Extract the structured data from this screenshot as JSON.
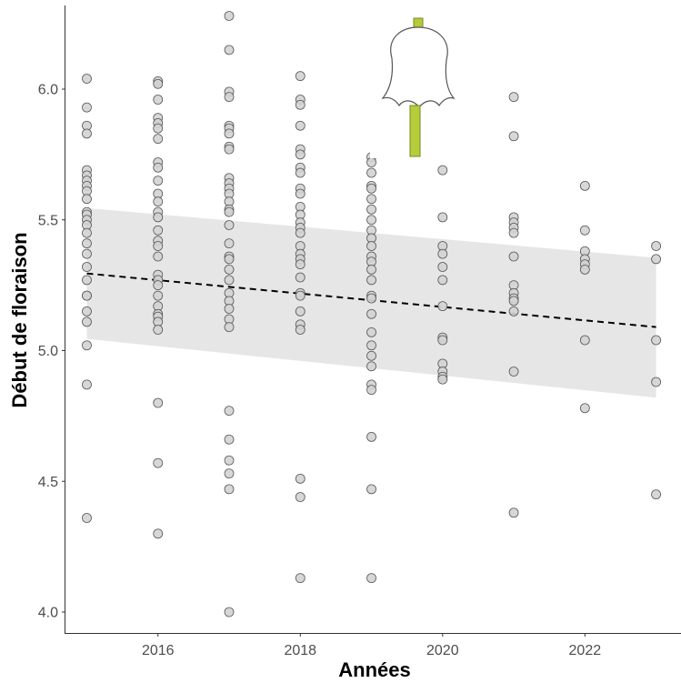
{
  "chart_data": {
    "type": "scatter",
    "title": "",
    "xlabel": "Années",
    "ylabel": "Début de floraison",
    "xlim": [
      2014.7,
      2023.35
    ],
    "ylim": [
      3.92,
      6.32
    ],
    "x_ticks": [
      "2016",
      "2018",
      "2020",
      "2022"
    ],
    "y_ticks": [
      "4.0",
      "4.5",
      "5.0",
      "5.5",
      "6.0"
    ],
    "grid": false,
    "legend": "none",
    "colors": {
      "point_fill": "#d3d3d3",
      "point_stroke": "#555555",
      "ribbon": "#e6e6e6",
      "trend_line": "#000000",
      "axis": "#333333"
    },
    "points": [
      {
        "year": 2015,
        "values": [
          6.04,
          5.93,
          5.86,
          5.83,
          5.69,
          5.67,
          5.65,
          5.63,
          5.61,
          5.58,
          5.53,
          5.52,
          5.5,
          5.48,
          5.45,
          5.41,
          5.37,
          5.32,
          5.27,
          5.21,
          5.21,
          5.15,
          5.11,
          5.02,
          4.87,
          4.36
        ]
      },
      {
        "year": 2016,
        "values": [
          6.03,
          6.02,
          5.96,
          5.89,
          5.87,
          5.85,
          5.81,
          5.72,
          5.7,
          5.65,
          5.6,
          5.57,
          5.53,
          5.51,
          5.46,
          5.42,
          5.4,
          5.36,
          5.29,
          5.27,
          5.25,
          5.21,
          5.17,
          5.14,
          5.13,
          5.11,
          5.08,
          4.8,
          4.57,
          4.3
        ]
      },
      {
        "year": 2017,
        "values": [
          6.28,
          6.15,
          5.99,
          5.97,
          5.86,
          5.85,
          5.83,
          5.78,
          5.77,
          5.66,
          5.64,
          5.62,
          5.6,
          5.57,
          5.54,
          5.53,
          5.48,
          5.41,
          5.36,
          5.35,
          5.31,
          5.27,
          5.22,
          5.19,
          5.16,
          5.12,
          5.09,
          4.77,
          4.66,
          4.58,
          4.53,
          4.47,
          4.0
        ]
      },
      {
        "year": 2018,
        "values": [
          6.05,
          5.96,
          5.94,
          5.86,
          5.77,
          5.75,
          5.7,
          5.68,
          5.62,
          5.6,
          5.55,
          5.52,
          5.49,
          5.47,
          5.45,
          5.4,
          5.37,
          5.35,
          5.33,
          5.28,
          5.22,
          5.21,
          5.15,
          5.1,
          5.08,
          4.51,
          4.44,
          4.13
        ]
      },
      {
        "year": 2019,
        "values": [
          5.74,
          5.72,
          5.68,
          5.63,
          5.62,
          5.58,
          5.54,
          5.5,
          5.46,
          5.43,
          5.4,
          5.36,
          5.34,
          5.31,
          5.27,
          5.21,
          5.2,
          5.14,
          5.07,
          5.02,
          4.98,
          4.94,
          4.87,
          4.85,
          4.67,
          4.47,
          4.13
        ]
      },
      {
        "year": 2020,
        "values": [
          5.69,
          5.51,
          5.4,
          5.37,
          5.32,
          5.27,
          5.17,
          5.05,
          5.04,
          4.95,
          4.92,
          4.9,
          4.89
        ]
      },
      {
        "year": 2021,
        "values": [
          5.97,
          5.82,
          5.51,
          5.49,
          5.47,
          5.45,
          5.36,
          5.25,
          5.22,
          5.2,
          5.19,
          5.15,
          4.92,
          4.38
        ]
      },
      {
        "year": 2022,
        "values": [
          5.63,
          5.46,
          5.38,
          5.35,
          5.33,
          5.31,
          5.04,
          4.78
        ]
      },
      {
        "year": 2023,
        "values": [
          5.4,
          5.35,
          5.04,
          4.88,
          4.45
        ]
      }
    ],
    "trend": {
      "x": [
        2015,
        2023
      ],
      "y": [
        5.295,
        5.09
      ],
      "style": "dashed"
    },
    "confidence_band": {
      "x": [
        2015,
        2023
      ],
      "lower": [
        5.045,
        4.82
      ],
      "upper": [
        5.545,
        5.355
      ]
    },
    "inset_image": {
      "subject": "lily-of-the-valley-flower-drawing"
    }
  }
}
